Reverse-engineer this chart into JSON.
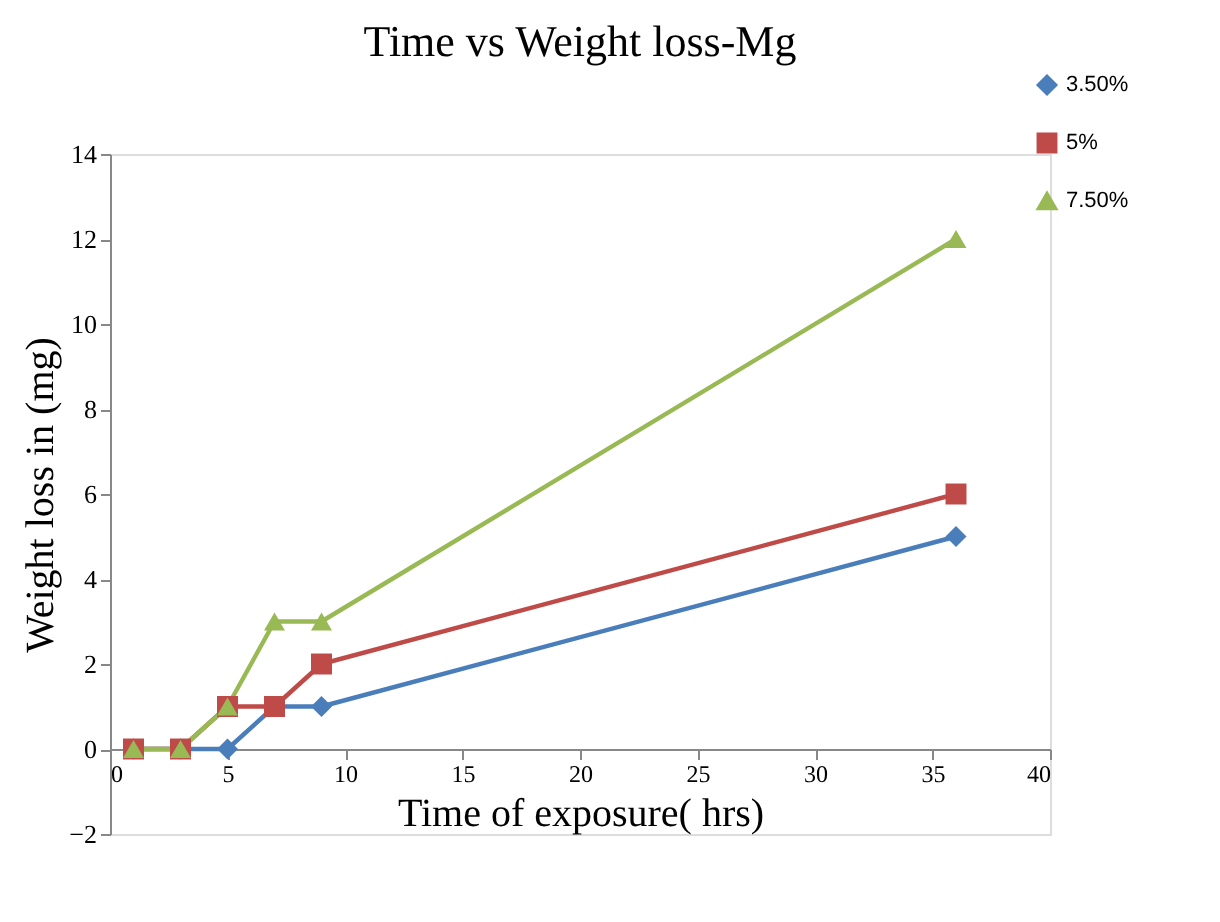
{
  "chart_data": {
    "type": "line",
    "title": "Time vs Weight loss-Mg",
    "xlabel": "Time of exposure( hrs)",
    "ylabel": "Weight loss in (mg)",
    "x": [
      1,
      3,
      5,
      7,
      9,
      36
    ],
    "series": [
      {
        "name": "3.50%",
        "color": "#4a7ebb",
        "marker": "diamond",
        "values": [
          0,
          0,
          0,
          1,
          1,
          5
        ]
      },
      {
        "name": "5%",
        "color": "#be4b48",
        "marker": "square",
        "values": [
          0,
          0,
          1,
          1,
          2,
          6
        ]
      },
      {
        "name": "7.50%",
        "color": "#98b954",
        "marker": "triangle",
        "values": [
          0,
          0,
          1,
          3,
          3,
          12
        ]
      }
    ],
    "xlim": [
      0,
      40
    ],
    "xticks": [
      0,
      5,
      10,
      15,
      20,
      25,
      30,
      35,
      40
    ],
    "ylim": [
      -2,
      14
    ],
    "yticks": [
      -2,
      0,
      2,
      4,
      6,
      8,
      10,
      12,
      14
    ],
    "grid": false,
    "legend": "top right",
    "line_style": "solid"
  }
}
